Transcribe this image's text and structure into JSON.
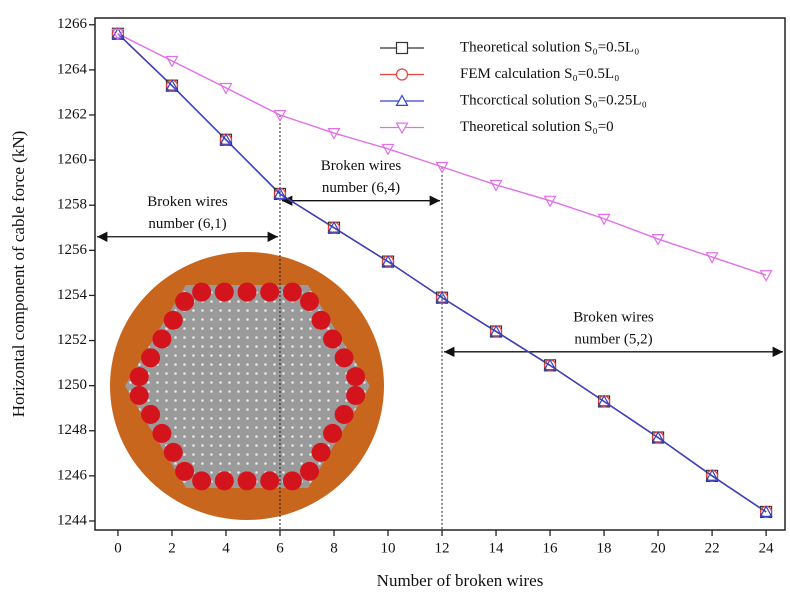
{
  "chart_data": {
    "type": "line",
    "x_label": "Number of broken wires",
    "y_label": "Horizontal component of cable force (kN)",
    "x": [
      0,
      2,
      4,
      6,
      8,
      10,
      12,
      14,
      16,
      18,
      20,
      22,
      24
    ],
    "series": [
      {
        "name": "Theoretical solution S₀=0.5L₀",
        "color": "#333333",
        "marker": "square",
        "values": [
          1265.6,
          1263.3,
          1260.9,
          1258.5,
          1257.0,
          1255.5,
          1253.9,
          1252.4,
          1250.9,
          1249.3,
          1247.7,
          1246.0,
          1244.4
        ]
      },
      {
        "name": "FEM calculation S₀=0.5L₀",
        "color": "#e8423c",
        "marker": "circle",
        "values": [
          1265.6,
          1263.3,
          1260.9,
          1258.5,
          1257.0,
          1255.5,
          1253.9,
          1252.4,
          1250.9,
          1249.3,
          1247.7,
          1246.0,
          1244.4
        ]
      },
      {
        "name": "Thcorctical solution S₀=0.25L₀",
        "color": "#3344cc",
        "marker": "triangle",
        "values": [
          1265.6,
          1263.3,
          1260.9,
          1258.5,
          1257.0,
          1255.5,
          1253.9,
          1252.4,
          1250.9,
          1249.3,
          1247.7,
          1246.0,
          1244.4
        ]
      },
      {
        "name": "Theoretical solution S₀=0",
        "color": "#e070e8",
        "marker": "triangle-down",
        "values": [
          1265.6,
          1264.4,
          1263.2,
          1262.0,
          1261.2,
          1260.5,
          1259.7,
          1258.9,
          1258.2,
          1257.4,
          1256.5,
          1255.7,
          1254.9
        ]
      }
    ],
    "xlim": [
      -0.85,
      24.7
    ],
    "ylim": [
      1243.6,
      1266.3
    ],
    "xticks": [
      0,
      2,
      4,
      6,
      8,
      10,
      12,
      14,
      16,
      18,
      20,
      22,
      24
    ],
    "yticks": [
      1244,
      1246,
      1248,
      1250,
      1252,
      1254,
      1256,
      1258,
      1260,
      1262,
      1264,
      1266
    ],
    "annotations": [
      {
        "text": [
          "Broken wires",
          "number (6,1)"
        ],
        "x": [
          -0.85,
          6
        ],
        "y": 1256.6
      },
      {
        "text": [
          "Broken wires",
          "number (6,4)"
        ],
        "x": [
          6,
          12
        ],
        "y": 1258.2
      },
      {
        "text": [
          "Broken wires",
          "number (5,2)"
        ],
        "x": [
          12,
          24.7
        ],
        "y": 1251.5
      }
    ],
    "legend": "upper right"
  }
}
